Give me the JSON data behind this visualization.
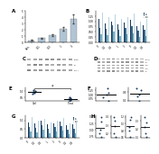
{
  "background_color": "#ffffff",
  "panel_A": {
    "bars": [
      0.4,
      0.7,
      1.2,
      2.2,
      3.8
    ],
    "errors": [
      0.05,
      0.12,
      0.2,
      0.35,
      0.7
    ],
    "bar_color": "#b0c4d4",
    "categories": [
      "Veh",
      "0.1",
      "0.3",
      "1",
      "3"
    ]
  },
  "panel_B": {
    "n_groups": 8,
    "n_series": 4,
    "series": [
      [
        1.1,
        0.9,
        1.0,
        0.85,
        0.95,
        1.05,
        0.75,
        0.8
      ],
      [
        0.7,
        0.65,
        0.8,
        0.6,
        0.7,
        0.75,
        0.55,
        0.6
      ],
      [
        0.4,
        0.35,
        0.5,
        0.3,
        0.4,
        0.45,
        0.25,
        0.3
      ],
      [
        1.4,
        1.2,
        1.3,
        1.1,
        1.2,
        1.35,
        1.0,
        1.1
      ]
    ],
    "colors": [
      "#1a3a5c",
      "#3a6a8c",
      "#7aaec0",
      "#b8d4e0"
    ],
    "legend": [
      "CI",
      "CII",
      "CIII",
      "CIV"
    ],
    "categories": [
      "V",
      "0.1",
      "0.3",
      "1",
      "3",
      "V",
      "0.1",
      "0.3"
    ]
  },
  "panel_C": {
    "n_bands": 3,
    "n_lanes": 8,
    "bg_color": "#d8d8d8",
    "band_color": "#707070",
    "labels": [
      "CIV-I",
      "CII",
      "actin"
    ]
  },
  "panel_D": {
    "n_bands": 5,
    "n_lanes": 10,
    "bg_color": "#d8d8d8",
    "band_color": "#707070",
    "labels": [
      "CI",
      "CIII",
      "CIV",
      "CII",
      "actin"
    ]
  },
  "panel_E": {
    "group1_dots": [
      0.9,
      1.05,
      0.8,
      1.1,
      0.95
    ],
    "group2_dots": [
      0.35,
      0.5,
      0.25,
      0.45,
      0.3
    ],
    "mean1": 0.96,
    "mean2": 0.37,
    "labels": [
      "Ctrl",
      "Treat"
    ]
  },
  "panel_F": {
    "subplots": [
      {
        "dots": [
          1.1,
          0.8,
          1.4,
          0.6,
          1.0
        ],
        "mean": 0.98
      },
      {
        "dots": [
          0.3,
          0.5,
          0.2,
          0.45,
          0.35
        ],
        "mean": 0.36
      }
    ]
  },
  "panel_G": {
    "n_groups": 8,
    "n_series": 4,
    "series": [
      [
        0.9,
        0.8,
        1.0,
        0.75,
        0.85,
        0.95,
        0.7,
        0.75
      ],
      [
        0.6,
        0.55,
        0.7,
        0.5,
        0.6,
        0.65,
        0.45,
        0.5
      ],
      [
        0.35,
        0.3,
        0.45,
        0.25,
        0.35,
        0.4,
        0.2,
        0.25
      ],
      [
        1.2,
        1.0,
        1.1,
        0.9,
        1.0,
        1.15,
        0.8,
        0.9
      ]
    ],
    "colors": [
      "#1a3a5c",
      "#3a6a8c",
      "#7aaec0",
      "#b8d4e0"
    ],
    "legend": [
      "CI",
      "CII",
      "CIII",
      "CIV"
    ],
    "categories": [
      "V",
      "0.1",
      "0.3",
      "1",
      "3",
      "V",
      "0.1",
      "0.3"
    ]
  },
  "panel_H": {
    "subplots": [
      {
        "dots": [
          1.0,
          1.3,
          0.7,
          1.5,
          0.85
        ],
        "mean": 1.07
      },
      {
        "dots": [
          0.2,
          0.35,
          0.15,
          0.4,
          0.28
        ],
        "mean": 0.28
      },
      {
        "dots": [
          0.8,
          1.1,
          0.6,
          1.2,
          0.9
        ],
        "mean": 0.92
      },
      {
        "dots": [
          0.15,
          0.28,
          0.1,
          0.35,
          0.22
        ],
        "mean": 0.22
      }
    ]
  }
}
